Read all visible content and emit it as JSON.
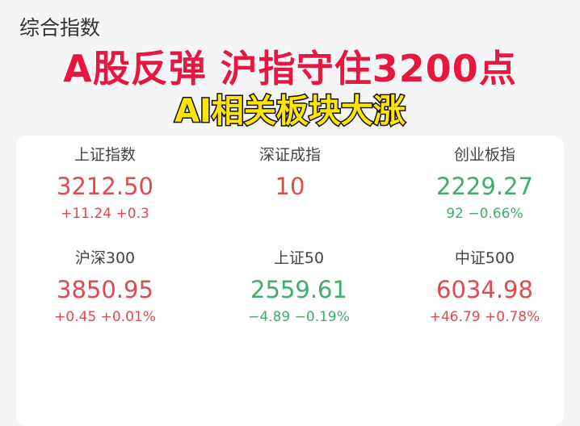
{
  "section_title": "综合指数",
  "colors": {
    "up": "#dd4b4f",
    "down": "#3fae6a",
    "headline": "#e8173f",
    "subheadline": "#ffe600"
  },
  "top_row": [
    {
      "name": "上证指数",
      "value": "3212.50",
      "change": "+11.24 +0.3",
      "trend": "up"
    },
    {
      "name": "深证成指",
      "value": "10",
      "change": "",
      "trend": "up"
    },
    {
      "name": "创业板指",
      "value": "2229.27",
      "change": "92 −0.66%",
      "trend": "down"
    }
  ],
  "bottom_row": [
    {
      "name": "沪深300",
      "value": "3850.95",
      "change": "+0.45 +0.01%",
      "trend": "up"
    },
    {
      "name": "上证50",
      "value": "2559.61",
      "change": "−4.89 −0.19%",
      "trend": "down"
    },
    {
      "name": "中证500",
      "value": "6034.98",
      "change": "+46.79 +0.78%",
      "trend": "up"
    }
  ],
  "overlay": {
    "headline": "A股反弹 沪指守住3200点",
    "subheadline": "AI相关板块大涨"
  }
}
